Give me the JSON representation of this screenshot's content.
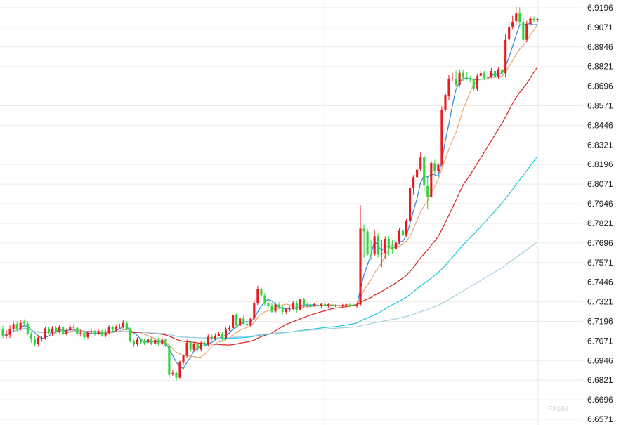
{
  "chart_data": {
    "type": "candlestick",
    "title": "",
    "xlabel": "",
    "ylabel": "",
    "ylim": [
      6.6571,
      6.9196
    ],
    "y_ticks": [
      "6.9196",
      "6.9071",
      "6.8946",
      "6.8821",
      "6.8696",
      "6.8571",
      "6.8446",
      "6.8321",
      "6.8196",
      "6.8071",
      "6.7946",
      "6.7821",
      "6.7696",
      "6.7571",
      "6.7446",
      "6.7321",
      "6.7196",
      "6.7071",
      "6.6946",
      "6.6821",
      "6.6696",
      "6.6571"
    ],
    "grid": true,
    "up_color": "#e8191f",
    "down_color": "#2fd63a",
    "candles": [
      [
        6.7146,
        6.7103,
        6.7168,
        6.7089
      ],
      [
        6.7101,
        6.7117,
        6.714,
        6.7087
      ],
      [
        6.711,
        6.7146,
        6.717,
        6.709
      ],
      [
        6.7144,
        6.7178,
        6.7196,
        6.7128
      ],
      [
        6.718,
        6.715,
        6.7196,
        6.7132
      ],
      [
        6.7151,
        6.7186,
        6.7206,
        6.7136
      ],
      [
        6.719,
        6.7183,
        6.7209,
        6.7171
      ],
      [
        6.7182,
        6.7114,
        6.7198,
        6.7107
      ],
      [
        6.7113,
        6.7086,
        6.7128,
        6.706
      ],
      [
        6.7085,
        6.7048,
        6.7098,
        6.704
      ],
      [
        6.7051,
        6.7092,
        6.7106,
        6.7036
      ],
      [
        6.7088,
        6.7088,
        6.7104,
        6.7067
      ],
      [
        6.7089,
        6.7151,
        6.7163,
        6.7079
      ],
      [
        6.7149,
        6.7128,
        6.7162,
        6.7118
      ],
      [
        6.7125,
        6.7151,
        6.7166,
        6.7104
      ],
      [
        6.7154,
        6.7131,
        6.7167,
        6.7121
      ],
      [
        6.7131,
        6.7161,
        6.7175,
        6.712
      ],
      [
        6.7159,
        6.7112,
        6.717,
        6.7102
      ],
      [
        6.7115,
        6.7138,
        6.715,
        6.7107
      ],
      [
        6.714,
        6.7163,
        6.7178,
        6.7124
      ],
      [
        6.7162,
        6.7155,
        6.7178,
        6.7142
      ],
      [
        6.7155,
        6.7114,
        6.7166,
        6.7104
      ],
      [
        6.7113,
        6.7124,
        6.7144,
        6.7098
      ],
      [
        6.7123,
        6.7093,
        6.7134,
        6.7074
      ],
      [
        6.7095,
        6.7124,
        6.7135,
        6.7081
      ],
      [
        6.7125,
        6.7133,
        6.715,
        6.7115
      ],
      [
        6.7134,
        6.7114,
        6.7141,
        6.7102
      ],
      [
        6.7114,
        6.7134,
        6.7144,
        6.7108
      ],
      [
        6.7132,
        6.7107,
        6.7142,
        6.7097
      ],
      [
        6.7106,
        6.7121,
        6.7143,
        6.7094
      ],
      [
        6.7121,
        6.716,
        6.7172,
        6.7111
      ],
      [
        6.7161,
        6.7142,
        6.7169,
        6.7122
      ],
      [
        6.7142,
        6.7158,
        6.7176,
        6.7128
      ],
      [
        6.7157,
        6.7162,
        6.718,
        6.7148
      ],
      [
        6.7162,
        6.7187,
        6.7202,
        6.7151
      ],
      [
        6.7185,
        6.7145,
        6.7197,
        6.7141
      ],
      [
        6.7145,
        6.707,
        6.7156,
        6.7061
      ],
      [
        6.7072,
        6.7048,
        6.7079,
        6.7033
      ],
      [
        6.705,
        6.708,
        6.7094,
        6.7041
      ],
      [
        6.708,
        6.7063,
        6.709,
        6.7052
      ],
      [
        6.7063,
        6.7061,
        6.7087,
        6.7046
      ],
      [
        6.7061,
        6.7081,
        6.7095,
        6.7054
      ],
      [
        6.7083,
        6.7052,
        6.7094,
        6.7044
      ],
      [
        6.7055,
        6.7078,
        6.7093,
        6.7045
      ],
      [
        6.7079,
        6.705,
        6.7093,
        6.7036
      ],
      [
        6.7052,
        6.7079,
        6.7098,
        6.7038
      ],
      [
        6.7082,
        6.7041,
        6.7089,
        6.7033
      ],
      [
        6.7042,
        6.6855,
        6.706,
        6.6836
      ],
      [
        6.6859,
        6.6867,
        6.6886,
        6.6849
      ],
      [
        6.6867,
        6.6837,
        6.688,
        6.6816
      ],
      [
        6.6838,
        6.6937,
        6.6945,
        6.6828
      ],
      [
        6.6933,
        6.6977,
        6.6987,
        6.692
      ],
      [
        6.6977,
        6.7061,
        6.7079,
        6.6964
      ],
      [
        6.7063,
        6.7015,
        6.7073,
        6.7002
      ],
      [
        6.7016,
        6.7052,
        6.706,
        6.7003
      ],
      [
        6.7054,
        6.7017,
        6.7067,
        6.7006
      ],
      [
        6.7017,
        6.7061,
        6.7072,
        6.7006
      ],
      [
        6.706,
        6.7046,
        6.7071,
        6.7035
      ],
      [
        6.7046,
        6.7097,
        6.7112,
        6.7034
      ],
      [
        6.7098,
        6.7085,
        6.7111,
        6.7074
      ],
      [
        6.7086,
        6.7102,
        6.712,
        6.7076
      ],
      [
        6.7103,
        6.7117,
        6.7131,
        6.7106
      ],
      [
        6.7116,
        6.7089,
        6.7131,
        6.7075
      ],
      [
        6.709,
        6.7143,
        6.7157,
        6.7078
      ],
      [
        6.7144,
        6.7154,
        6.717,
        6.7136
      ],
      [
        6.7154,
        6.7238,
        6.7245,
        6.7147
      ],
      [
        6.7239,
        6.7169,
        6.725,
        6.7159
      ],
      [
        6.7169,
        6.7215,
        6.7223,
        6.7158
      ],
      [
        6.7215,
        6.718,
        6.7231,
        6.7174
      ],
      [
        6.7181,
        6.717,
        6.719,
        6.716
      ],
      [
        6.717,
        6.7214,
        6.7219,
        6.7163
      ],
      [
        6.7214,
        6.7313,
        6.7334,
        6.7202
      ],
      [
        6.7313,
        6.7404,
        6.7422,
        6.7301
      ],
      [
        6.7403,
        6.7361,
        6.7411,
        6.7352
      ],
      [
        6.7361,
        6.7309,
        6.7377,
        6.7295
      ],
      [
        6.7311,
        6.7294,
        6.733,
        6.7285
      ],
      [
        6.7295,
        6.7258,
        6.7313,
        6.7252
      ],
      [
        6.7259,
        6.7303,
        6.7318,
        6.7248
      ],
      [
        6.7303,
        6.7285,
        6.7317,
        6.7271
      ],
      [
        6.7285,
        6.7256,
        6.73,
        6.724
      ],
      [
        6.7256,
        6.7276,
        6.7282,
        6.7242
      ],
      [
        6.7275,
        6.7276,
        6.7292,
        6.7258
      ],
      [
        6.7275,
        6.7313,
        6.7327,
        6.7264
      ],
      [
        6.7314,
        6.7268,
        6.733,
        6.7252
      ],
      [
        6.7271,
        6.7339,
        6.7341,
        6.7265
      ],
      [
        6.7339,
        6.7296,
        6.7347,
        6.7283
      ],
      [
        6.7296,
        6.7294,
        6.7313,
        6.7283
      ],
      [
        6.7297,
        6.7295,
        6.7307,
        6.7286
      ],
      [
        6.7297,
        6.7303,
        6.7311,
        6.7296
      ],
      [
        6.7301,
        6.7293,
        6.7313,
        6.7286
      ],
      [
        6.7294,
        6.7307,
        6.7315,
        6.7283
      ],
      [
        6.7307,
        6.7294,
        6.7312,
        6.7285
      ],
      [
        6.7292,
        6.7305,
        6.7313,
        6.7283
      ],
      [
        6.7302,
        6.7295,
        6.7307,
        6.7288
      ],
      [
        6.7295,
        6.7296,
        6.7303,
        6.7287
      ],
      [
        6.7296,
        6.7293,
        6.73,
        6.7288
      ],
      [
        6.7293,
        6.7299,
        6.7307,
        6.7286
      ],
      [
        6.7301,
        6.7305,
        6.7315,
        6.7287
      ],
      [
        6.7303,
        6.7302,
        6.7315,
        6.7286
      ],
      [
        6.7302,
        6.7297,
        6.7313,
        6.7287
      ],
      [
        6.7298,
        6.7304,
        6.731,
        6.7282
      ],
      [
        6.7303,
        6.7788,
        6.7937,
        6.7294
      ],
      [
        6.7787,
        6.777,
        6.7814,
        6.7601
      ],
      [
        6.777,
        6.7622,
        6.7787,
        6.7615
      ],
      [
        6.7623,
        6.7622,
        6.7712,
        6.7588
      ],
      [
        6.7623,
        6.7739,
        6.778,
        6.761
      ],
      [
        6.774,
        6.7626,
        6.7757,
        6.7603
      ],
      [
        6.7626,
        6.7631,
        6.7717,
        6.7542
      ],
      [
        6.7632,
        6.7722,
        6.7738,
        6.7594
      ],
      [
        6.7722,
        6.7663,
        6.774,
        6.7616
      ],
      [
        6.7663,
        6.7657,
        6.7718,
        6.7626
      ],
      [
        6.7658,
        6.7699,
        6.7722,
        6.7654
      ],
      [
        6.77,
        6.7774,
        6.7791,
        6.7684
      ],
      [
        6.7774,
        6.7742,
        6.7816,
        6.7733
      ],
      [
        6.7743,
        6.7835,
        6.7848,
        6.7738
      ],
      [
        6.7835,
        6.8045,
        6.8064,
        6.7823
      ],
      [
        6.8049,
        6.8115,
        6.8129,
        6.8005
      ],
      [
        6.8115,
        6.8163,
        6.8203,
        6.809
      ],
      [
        6.8165,
        6.8243,
        6.8274,
        6.8156
      ],
      [
        6.8243,
        6.8062,
        6.8254,
        6.8013
      ],
      [
        6.8059,
        6.7989,
        6.8125,
        6.791
      ],
      [
        6.7989,
        6.8207,
        6.8221,
        6.7983
      ],
      [
        6.8204,
        6.8154,
        6.8226,
        6.8136
      ],
      [
        6.8154,
        6.8195,
        6.8204,
        6.8133
      ],
      [
        6.8195,
        6.8544,
        6.8567,
        6.8181
      ],
      [
        6.8545,
        6.864,
        6.8655,
        6.8532
      ],
      [
        6.8636,
        6.8745,
        6.8766,
        6.8606
      ],
      [
        6.8743,
        6.8744,
        6.878,
        6.8728
      ],
      [
        6.8744,
        6.8704,
        6.8795,
        6.869
      ],
      [
        6.8703,
        6.8781,
        6.8803,
        6.8689
      ],
      [
        6.8781,
        6.8751,
        6.8803,
        6.8726
      ],
      [
        6.8752,
        6.8743,
        6.8785,
        6.8732
      ],
      [
        6.8742,
        6.8738,
        6.8761,
        6.8721
      ],
      [
        6.8739,
        6.8681,
        6.8749,
        6.8666
      ],
      [
        6.8682,
        6.876,
        6.8775,
        6.8664
      ],
      [
        6.8763,
        6.8779,
        6.88,
        6.8756
      ],
      [
        6.8781,
        6.8748,
        6.8794,
        6.8735
      ],
      [
        6.875,
        6.8756,
        6.8793,
        6.8741
      ],
      [
        6.8756,
        6.8793,
        6.881,
        6.8747
      ],
      [
        6.8793,
        6.8756,
        6.881,
        6.8742
      ],
      [
        6.8758,
        6.8804,
        6.8817,
        6.8744
      ],
      [
        6.8801,
        6.8777,
        6.8811,
        6.8754
      ],
      [
        6.878,
        6.8991,
        6.9027,
        6.8754
      ],
      [
        6.8993,
        6.9073,
        6.9102,
        6.8975
      ],
      [
        6.9072,
        6.9107,
        6.9144,
        6.906
      ],
      [
        6.911,
        6.9159,
        6.9203,
        6.9084
      ],
      [
        6.916,
        6.9106,
        6.92,
        6.9077
      ],
      [
        6.9104,
        6.8991,
        6.9131,
        6.8976
      ],
      [
        6.8991,
        6.9094,
        6.9113,
        6.8976
      ],
      [
        6.9095,
        6.9127,
        6.9142,
        6.908
      ],
      [
        6.9125,
        6.9116,
        6.9141,
        6.9103
      ],
      [
        6.9117,
        6.9124,
        6.9135,
        6.9104
      ]
    ],
    "ma_lines": [
      {
        "color": "#3a8edc"
      },
      {
        "color": "#e6a778"
      },
      {
        "color": "#dc1e1e"
      },
      {
        "color": "#1fc6d8"
      },
      {
        "color": "#a6cfe0"
      }
    ]
  },
  "watermark": {
    "text": "FX168"
  }
}
